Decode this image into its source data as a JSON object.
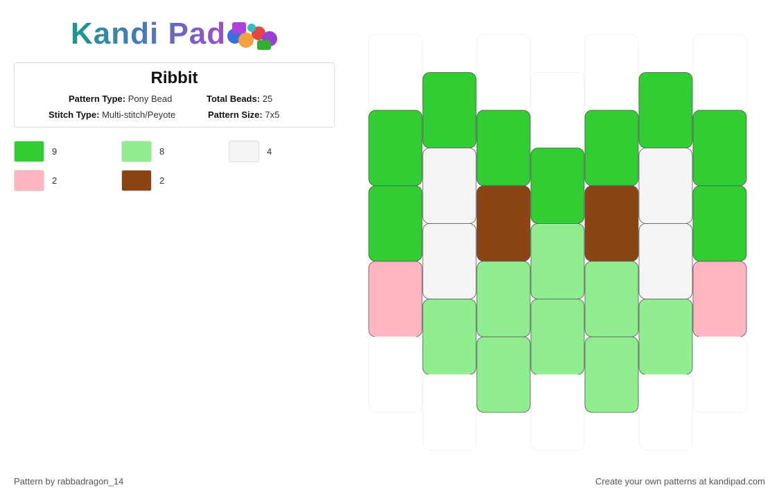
{
  "header": {
    "logo": "Kandi Pad",
    "title": "Ribbit",
    "fields": [
      {
        "label": "Pattern Type:",
        "value": "Pony Bead"
      },
      {
        "label": "Total Beads:",
        "value": "25"
      },
      {
        "label": "Stitch Type:",
        "value": "Multi-stitch/Peyote"
      },
      {
        "label": "Pattern Size:",
        "value": "7x5"
      }
    ]
  },
  "legend": [
    {
      "color": "#32cd32",
      "count": 9
    },
    {
      "color": "#90ee90",
      "count": 8
    },
    {
      "color": "#f5f5f5",
      "count": 4
    },
    {
      "color": "#ffb6c1",
      "count": 2
    },
    {
      "color": "#8b4513",
      "count": 2
    }
  ],
  "grid": {
    "columns": [
      [
        null,
        "#32cd32",
        "#32cd32",
        "#ffb6c1",
        null
      ],
      [
        "#32cd32",
        "#f5f5f5",
        "#f5f5f5",
        "#90ee90",
        null
      ],
      [
        null,
        "#32cd32",
        "#8b4513",
        "#90ee90",
        "#90ee90"
      ],
      [
        null,
        "#32cd32",
        "#90ee90",
        "#90ee90",
        null
      ],
      [
        null,
        "#32cd32",
        "#8b4513",
        "#90ee90",
        "#90ee90"
      ],
      [
        "#32cd32",
        "#f5f5f5",
        "#f5f5f5",
        "#90ee90",
        null
      ],
      [
        null,
        "#32cd32",
        "#32cd32",
        "#ffb6c1",
        null
      ]
    ]
  },
  "footer": {
    "left": "Pattern by rabbadragon_14",
    "right": "Create your own patterns at kandipad.com"
  }
}
